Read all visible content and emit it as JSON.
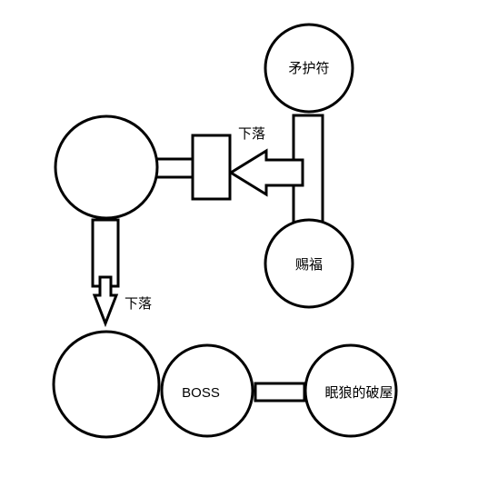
{
  "diagram": {
    "nodes": {
      "talisman": "矛护符",
      "blessing": "赐福",
      "boss": "BOSS",
      "wolf_hut": "眠狼的破屋"
    },
    "arrows": {
      "drop_upper": "下落",
      "drop_lower": "下落"
    },
    "colors": {
      "stroke": "#000000",
      "fill": "#ffffff"
    }
  }
}
